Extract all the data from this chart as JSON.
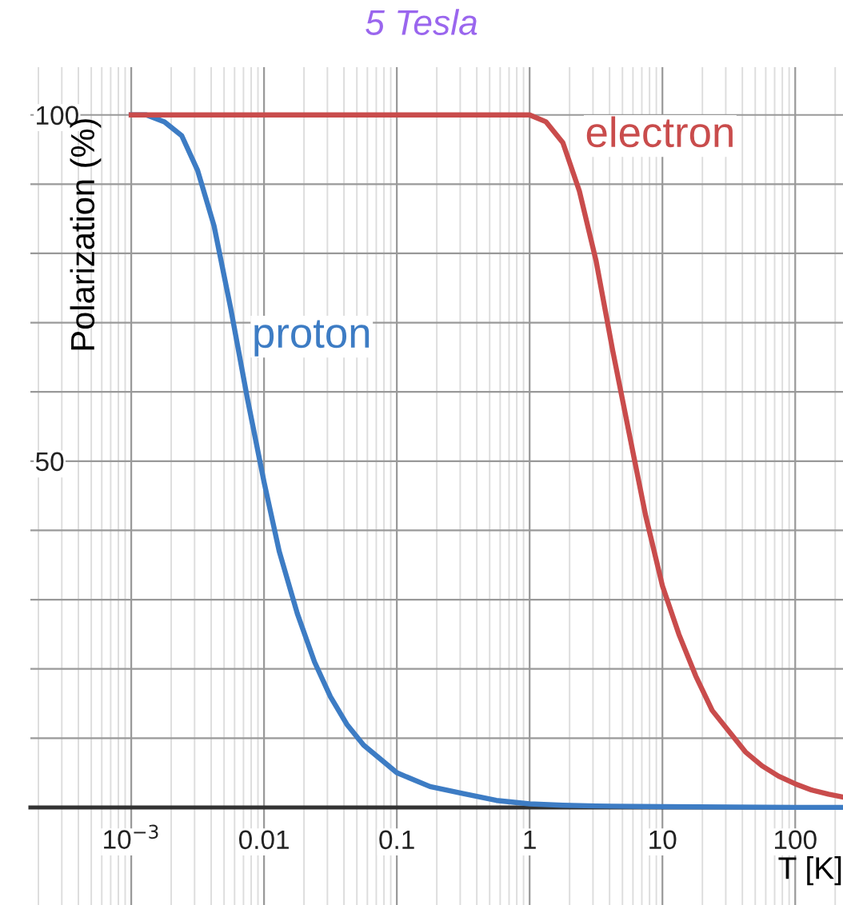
{
  "chart_data": {
    "type": "line",
    "title": "5 Tesla",
    "xlabel": "T [K]",
    "ylabel": "Polarization (%)",
    "log": "x",
    "grid": true,
    "marker": "none",
    "line_style": "solid",
    "xlim": [
      0.000174,
      229
    ],
    "xticks": [
      {
        "value": 0.001,
        "label": "10$^{−3}$"
      },
      0.01,
      0.1,
      1,
      10,
      100
    ],
    "ylim": [
      -14.1,
      106.9
    ],
    "yticks": [
      {
        "value": 0,
        "label": null
      },
      {
        "value": 10,
        "label": null
      },
      {
        "value": 20,
        "label": null
      },
      {
        "value": 30,
        "label": null
      },
      {
        "value": 40,
        "label": null
      },
      50,
      {
        "value": 60,
        "label": null
      },
      {
        "value": 70,
        "label": null
      },
      {
        "value": 80,
        "label": null
      },
      {
        "value": 90,
        "label": null
      },
      100
    ],
    "series": [
      {
        "name": "proton",
        "color": "#3d7cc4",
        "x": [
          0.001,
          0.0013,
          0.00178,
          0.0024,
          0.00316,
          0.0042,
          0.00562,
          0.0075,
          0.01,
          0.013,
          0.0178,
          0.024,
          0.0316,
          0.042,
          0.0562,
          0.075,
          0.1,
          0.178,
          0.316,
          0.562,
          1,
          1.78,
          3.16,
          10,
          100,
          229
        ],
        "values": [
          100,
          100,
          99,
          97,
          92,
          84,
          72,
          59,
          47,
          37,
          28,
          21,
          16,
          12,
          9,
          7,
          5,
          3,
          2,
          1,
          0.5,
          0.3,
          0.2,
          0.1,
          0,
          0
        ]
      },
      {
        "name": "electron",
        "color": "#c94c4c",
        "x": [
          0.001,
          0.01,
          0.1,
          0.5,
          1,
          1.33,
          1.78,
          2.37,
          3.16,
          4.22,
          5.62,
          7.5,
          10,
          13.3,
          17.8,
          23.7,
          31.6,
          42.2,
          56.2,
          75,
          100,
          133,
          178,
          229
        ],
        "values": [
          100,
          100,
          100,
          100,
          100,
          99,
          96,
          89,
          79,
          66,
          54,
          42,
          32,
          25,
          19,
          14,
          11,
          8,
          6,
          4.5,
          3.4,
          2.5,
          1.9,
          1.5
        ]
      }
    ]
  }
}
